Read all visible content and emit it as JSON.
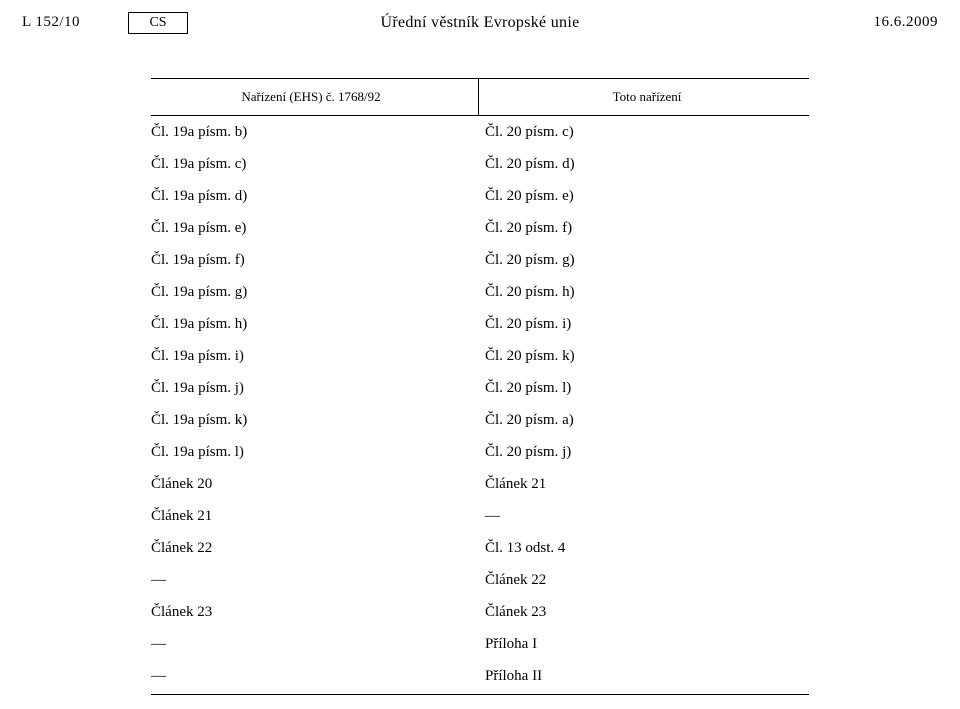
{
  "header": {
    "left": "L 152/10",
    "lang": "CS",
    "center": "Úřední věstník Evropské unie",
    "right": "16.6.2009"
  },
  "table": {
    "head_left": "Nařízení (EHS) č. 1768/92",
    "head_right": "Toto nařízení",
    "rows": [
      {
        "l": "Čl. 19a písm. b)",
        "r": "Čl. 20 písm. c)"
      },
      {
        "l": "Čl. 19a písm. c)",
        "r": "Čl. 20 písm. d)"
      },
      {
        "l": "Čl. 19a písm. d)",
        "r": "Čl. 20 písm. e)"
      },
      {
        "l": "Čl. 19a písm. e)",
        "r": "Čl. 20 písm. f)"
      },
      {
        "l": "Čl. 19a písm. f)",
        "r": "Čl. 20 písm. g)"
      },
      {
        "l": "Čl. 19a písm. g)",
        "r": "Čl. 20 písm. h)"
      },
      {
        "l": "Čl. 19a písm. h)",
        "r": "Čl. 20 písm. i)"
      },
      {
        "l": "Čl. 19a písm. i)",
        "r": "Čl. 20 písm. k)"
      },
      {
        "l": "Čl. 19a písm. j)",
        "r": "Čl. 20 písm. l)"
      },
      {
        "l": "Čl. 19a písm. k)",
        "r": "Čl. 20 písm. a)"
      },
      {
        "l": "Čl. 19a písm. l)",
        "r": "Čl. 20 písm. j)"
      },
      {
        "l": "Článek 20",
        "r": "Článek 21"
      },
      {
        "l": "Článek 21",
        "r": "—"
      },
      {
        "l": "Článek 22",
        "r": "Čl. 13 odst. 4"
      },
      {
        "l": "—",
        "r": "Článek 22"
      },
      {
        "l": "Článek 23",
        "r": "Článek 23"
      },
      {
        "l": "—",
        "r": "Příloha I"
      },
      {
        "l": "—",
        "r": "Příloha II"
      }
    ]
  }
}
